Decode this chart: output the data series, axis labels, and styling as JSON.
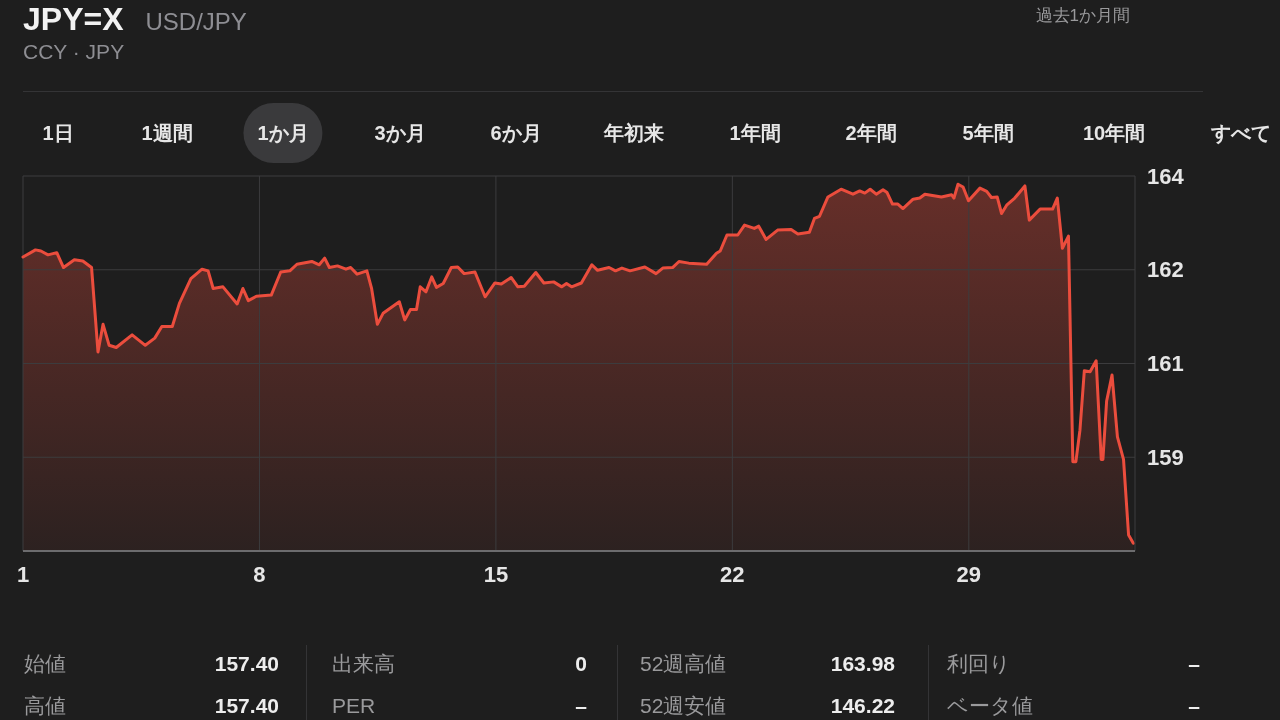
{
  "chart_data": {
    "type": "area",
    "title": "JPY=X",
    "subtitle": "USD/JPY",
    "annotations": [
      "CCY · JPY",
      "過去1か月間",
      "1日",
      "1週間",
      "1か月",
      "3か月",
      "6か月",
      "年初来",
      "1年間",
      "2年間",
      "5年間",
      "10年間",
      "すべて",
      "始値",
      "157.40",
      "出来高",
      "0",
      "52週高値",
      "163.98",
      "利回り",
      "–",
      "高値",
      "157.40",
      "PER",
      "–",
      "52週安値",
      "146.22",
      "ベータ値",
      "–"
    ],
    "x": [
      1.0,
      1.37,
      1.53,
      1.74,
      2.0,
      2.2,
      2.52,
      2.77,
      3.03,
      3.22,
      3.37,
      3.55,
      3.76,
      4.23,
      4.62,
      4.9,
      5.11,
      5.42,
      5.63,
      5.97,
      6.3,
      6.48,
      6.63,
      6.92,
      7.34,
      7.51,
      7.67,
      7.91,
      8.35,
      8.63,
      8.9,
      9.11,
      9.55,
      9.77,
      9.93,
      10.07,
      10.31,
      10.56,
      10.7,
      10.89,
      11.18,
      11.32,
      11.49,
      11.66,
      12.14,
      12.3,
      12.47,
      12.65,
      12.76,
      12.93,
      13.1,
      13.24,
      13.44,
      13.68,
      13.87,
      14.06,
      14.38,
      14.68,
      14.97,
      15.16,
      15.45,
      15.65,
      15.84,
      16.18,
      16.42,
      16.71,
      16.95,
      17.09,
      17.24,
      17.53,
      17.84,
      18.01,
      18.35,
      18.54,
      18.73,
      18.97,
      19.41,
      19.74,
      19.94,
      20.23,
      20.42,
      20.71,
      21.24,
      21.53,
      21.64,
      21.84,
      22.16,
      22.36,
      22.65,
      22.78,
      23.0,
      23.34,
      23.74,
      23.94,
      24.28,
      24.43,
      24.58,
      24.83,
      25.22,
      25.57,
      25.77,
      25.92,
      26.08,
      26.26,
      26.46,
      26.58,
      26.74,
      26.9,
      27.05,
      27.35,
      27.55,
      27.7,
      28.19,
      28.49,
      28.56,
      28.68,
      28.83,
      28.99,
      29.33,
      29.53,
      29.67,
      29.84,
      29.97,
      30.12,
      30.36,
      30.66,
      30.79,
      31.11,
      31.48,
      31.62,
      31.77,
      31.95,
      32.08,
      32.17,
      32.29,
      32.42,
      32.59,
      32.77,
      32.92,
      32.97,
      33.08,
      33.24,
      33.4,
      33.58,
      33.73,
      33.87
    ],
    "values": [
      162.63,
      162.76,
      162.74,
      162.67,
      162.71,
      162.44,
      162.58,
      162.56,
      162.44,
      160.91,
      161.41,
      161.03,
      160.99,
      161.22,
      161.03,
      161.16,
      161.37,
      161.37,
      161.79,
      162.24,
      162.41,
      162.38,
      162.06,
      162.09,
      161.78,
      162.06,
      161.84,
      161.92,
      161.94,
      162.36,
      162.38,
      162.5,
      162.55,
      162.49,
      162.61,
      162.44,
      162.47,
      162.41,
      162.44,
      162.32,
      162.38,
      162.06,
      161.41,
      161.61,
      161.82,
      161.49,
      161.68,
      161.68,
      162.09,
      162.0,
      162.27,
      162.08,
      162.15,
      162.44,
      162.45,
      162.33,
      162.36,
      161.91,
      162.16,
      162.14,
      162.26,
      162.09,
      162.1,
      162.35,
      162.16,
      162.18,
      162.09,
      162.15,
      162.09,
      162.16,
      162.49,
      162.39,
      162.44,
      162.38,
      162.43,
      162.38,
      162.45,
      162.33,
      162.43,
      162.44,
      162.55,
      162.52,
      162.5,
      162.7,
      162.74,
      163.03,
      163.03,
      163.21,
      163.15,
      163.19,
      162.95,
      163.12,
      163.13,
      163.05,
      163.08,
      163.33,
      163.37,
      163.72,
      163.86,
      163.77,
      163.83,
      163.79,
      163.86,
      163.77,
      163.85,
      163.8,
      163.59,
      163.59,
      163.51,
      163.68,
      163.7,
      163.77,
      163.72,
      163.76,
      163.7,
      163.95,
      163.9,
      163.65,
      163.88,
      163.82,
      163.71,
      163.72,
      163.42,
      163.57,
      163.7,
      163.92,
      163.3,
      163.5,
      163.5,
      163.7,
      162.79,
      163.01,
      158.92,
      158.92,
      159.49,
      160.57,
      160.55,
      160.75,
      158.96,
      158.96,
      160.02,
      160.49,
      159.37,
      158.96,
      157.59,
      157.44
    ],
    "color": "#eb4d3d",
    "xlim": [
      1,
      33.92
    ],
    "xticks": [
      1,
      8,
      15,
      22,
      29
    ],
    "ylim": [
      157.3,
      164.1
    ],
    "yticks": [
      {
        "value": 164.1,
        "label": "164"
      },
      {
        "value": 162.4,
        "label": "162"
      },
      {
        "value": 160.7,
        "label": "161"
      },
      {
        "value": 159.0,
        "label": "159"
      }
    ],
    "grid": true
  }
}
